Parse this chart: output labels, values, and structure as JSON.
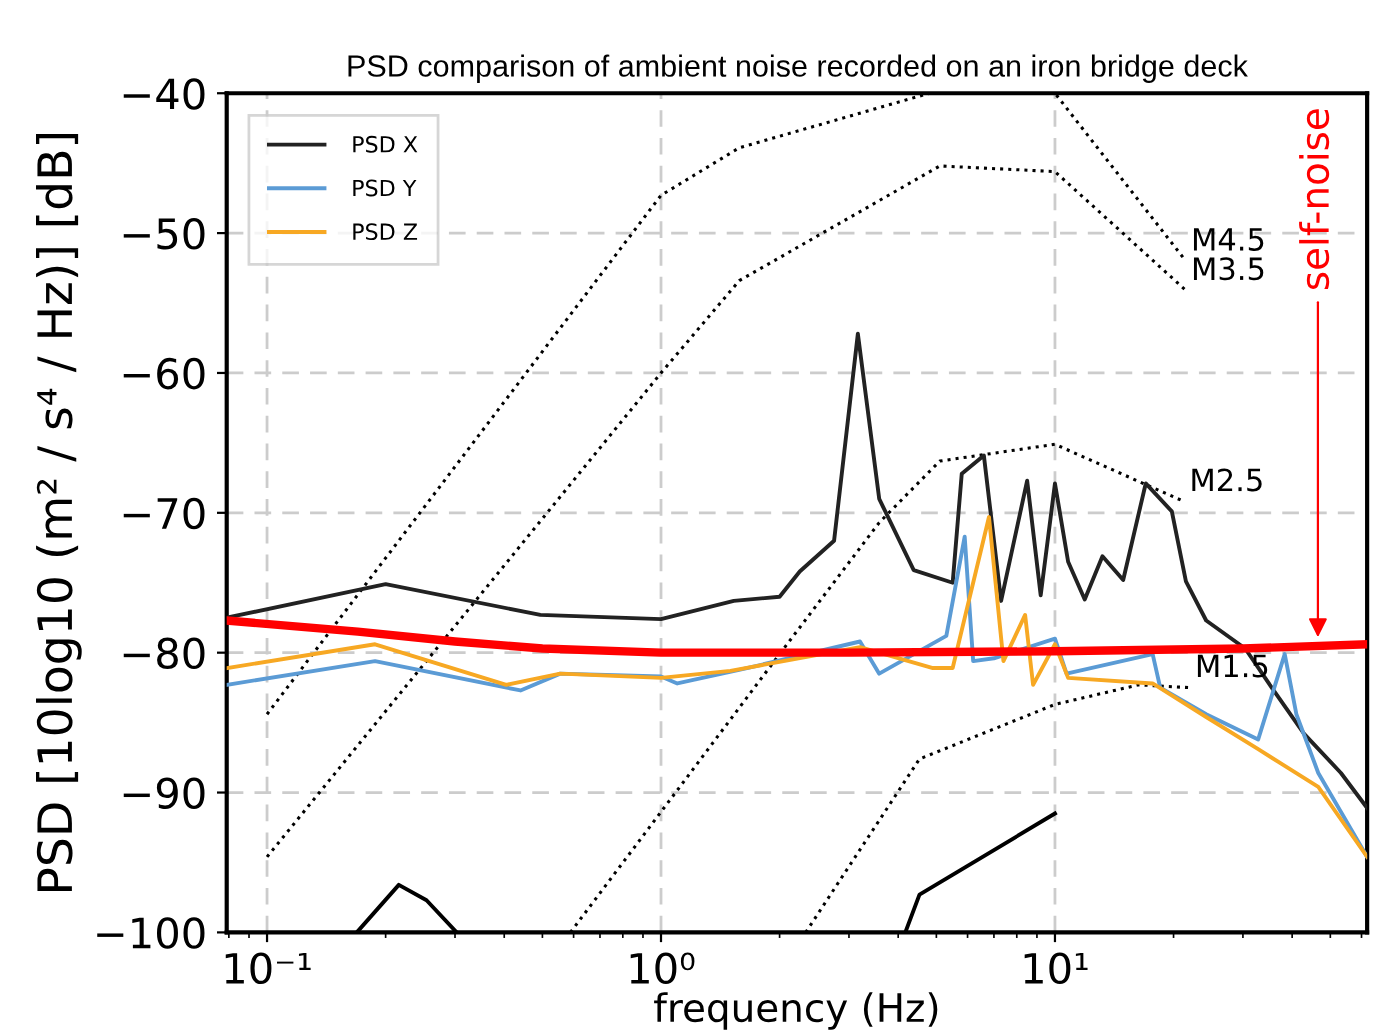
{
  "chart_data": {
    "type": "line",
    "title": "PSD comparison of ambient noise recorded on an iron bridge deck",
    "xlabel": "frequency (Hz)",
    "ylabel": "PSD [10log10 (m² / s⁴ / Hz)] [dB]",
    "log": "x",
    "xlim": [
      0.079,
      62
    ],
    "xticks": [
      {
        "value": 0.1,
        "label": "10⁻¹"
      },
      {
        "value": 1,
        "label": "10⁰"
      },
      {
        "value": 10,
        "label": "10¹"
      }
    ],
    "ylim": [
      -100,
      -40
    ],
    "yticks": [
      -100,
      -90,
      -80,
      -70,
      -60,
      -50,
      -40
    ],
    "grid": true,
    "legend": "top left",
    "series": [
      {
        "name": "PSD X",
        "color": "#222222",
        "line_style": "solid",
        "x": [
          0.079,
          0.2,
          0.494,
          1,
          1.53,
          2,
          2.25,
          2.75,
          3.16,
          3.58,
          4.38,
          5.5,
          5.8,
          6.6,
          7.3,
          8.5,
          9.2,
          10,
          10.8,
          11.9,
          13.2,
          14.9,
          17,
          19.8,
          21.5,
          24.2,
          30.4,
          35.5,
          42.9,
          53.2,
          62
        ],
        "values": [
          -77.5,
          -75.1,
          -77.3,
          -77.6,
          -76.3,
          -76,
          -74.2,
          -72,
          -57.2,
          -69,
          -74.1,
          -75,
          -67.2,
          -65.9,
          -76.3,
          -67.7,
          -75.9,
          -67.9,
          -73.5,
          -76.2,
          -73.1,
          -74.8,
          -67.9,
          -69.9,
          -74.9,
          -77.7,
          -79.7,
          -82.5,
          -85.8,
          -88.6,
          -91.1
        ]
      },
      {
        "name": "PSD Y",
        "color": "#5b9bd5",
        "line_style": "solid",
        "x": [
          0.079,
          0.188,
          0.44,
          0.555,
          1,
          1.1,
          1.6,
          3.2,
          3.58,
          5.3,
          5.9,
          6.2,
          7,
          10,
          10.7,
          17.7,
          18.5,
          24.2,
          32.8,
          38.3,
          41,
          46.6,
          62
        ],
        "values": [
          -82.3,
          -80.6,
          -82.7,
          -81.5,
          -81.7,
          -82.2,
          -81.2,
          -79.2,
          -81.5,
          -78.8,
          -71.7,
          -80.6,
          -80.4,
          -79,
          -81.5,
          -80.1,
          -82.5,
          -84.4,
          -86.2,
          -80.1,
          -84.4,
          -88.6,
          -94.6
        ]
      },
      {
        "name": "PSD Z",
        "color": "#f7a823",
        "line_style": "solid",
        "x": [
          0.079,
          0.188,
          0.405,
          0.555,
          1,
          1.5,
          3.2,
          4.9,
          5.5,
          6.8,
          7.4,
          8.4,
          8.8,
          10,
          10.8,
          17.7,
          24.2,
          32.8,
          46.6,
          62
        ],
        "values": [
          -81.1,
          -79.4,
          -82.3,
          -81.5,
          -81.8,
          -81.3,
          -79.6,
          -81.1,
          -81.1,
          -70.3,
          -80.6,
          -77.3,
          -82.3,
          -79.4,
          -81.8,
          -82.2,
          -84.6,
          -86.9,
          -89.6,
          -94.6
        ]
      },
      {
        "name": "self-noise",
        "color": "#ff0000",
        "line_style": "solid",
        "x": [
          0.079,
          0.17,
          0.3,
          0.5,
          1,
          3,
          10,
          30,
          62
        ],
        "values": [
          -77.7,
          -78.5,
          -79.2,
          -79.7,
          -80,
          -80,
          -79.9,
          -79.7,
          -79.4
        ]
      },
      {
        "name": "M4.5",
        "color": "#000000",
        "line_style": "dotted",
        "x": [
          0.1,
          1,
          1.58,
          4.8,
          10,
          21.5
        ],
        "values": [
          -84.4,
          -47.3,
          -43.9,
          -40,
          -40,
          -52
        ]
      },
      {
        "name": "M3.5",
        "color": "#000000",
        "line_style": "dotted",
        "x": [
          0.1,
          1,
          1.58,
          5.1,
          10,
          21.5
        ],
        "values": [
          -94.6,
          -60,
          -53.4,
          -45.2,
          -45.6,
          -54.1
        ]
      },
      {
        "name": "M2.5",
        "color": "#000000",
        "line_style": "dotted",
        "x": [
          0.589,
          2,
          3.58,
          5.1,
          10,
          21.3
        ],
        "values": [
          -100,
          -80.1,
          -70.7,
          -66.3,
          -65.1,
          -69.2
        ]
      },
      {
        "name": "M1.5",
        "color": "#000000",
        "line_style": "dotted",
        "x": [
          2.33,
          4.53,
          10,
          16.3,
          22
        ],
        "values": [
          -100,
          -87.6,
          -83.7,
          -82.3,
          -82.5
        ]
      },
      {
        "color": "#000000",
        "line_style": "solid",
        "x": [
          0.169,
          0.216,
          0.254,
          0.303
        ],
        "values": [
          -100,
          -96.6,
          -97.7,
          -100
        ]
      },
      {
        "color": "#000000",
        "line_style": "solid",
        "x": [
          4.17,
          4.53,
          10
        ],
        "values": [
          -100,
          -97.3,
          -91.5
        ]
      }
    ]
  }
}
